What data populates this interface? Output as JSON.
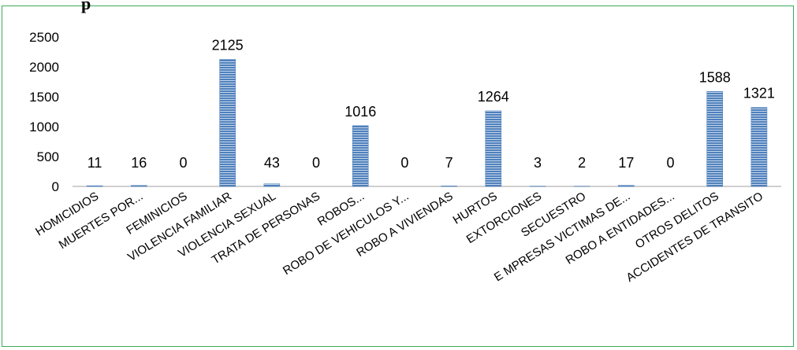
{
  "title_fragment": "p",
  "colors": {
    "frame": "#3daa5a",
    "axis": "#bfbfbf",
    "bar_fill": "#4f81bd",
    "bar_stripe": "#c6d5ea"
  },
  "chart_data": {
    "type": "bar",
    "categories": [
      "HOMICIDIOS",
      "MUERTES POR...",
      "FEMINICIOS",
      "VIOLENCIA FAMILIAR",
      "VIOLENCIA SEXUAL",
      "TRATA DE PERSONAS",
      "ROBOS...",
      "ROBO DE VEHICULOS Y...",
      "ROBO A VIVIENDAS",
      "HURTOS",
      "EXTORCIONES",
      "SECUESTRO",
      "E MPRESAS VICTIMAS DE...",
      "ROBO A ENTIDADES...",
      "OTROS DELITOS",
      "ACCIDENTES DE TRANSITO"
    ],
    "values": [
      11,
      16,
      0,
      2125,
      43,
      0,
      1016,
      0,
      7,
      1264,
      3,
      2,
      17,
      0,
      1588,
      1321
    ],
    "data_labels": [
      "11",
      "16",
      "0",
      "2125",
      "43",
      "0",
      "1016",
      "0",
      "7",
      "1264",
      "3",
      "2",
      "17",
      "0",
      "1588",
      "1321"
    ],
    "y_ticks": [
      "0",
      "500",
      "1000",
      "1500",
      "2000",
      "2500"
    ],
    "ylim": [
      0,
      2500
    ],
    "grid": false,
    "legend": "none"
  }
}
